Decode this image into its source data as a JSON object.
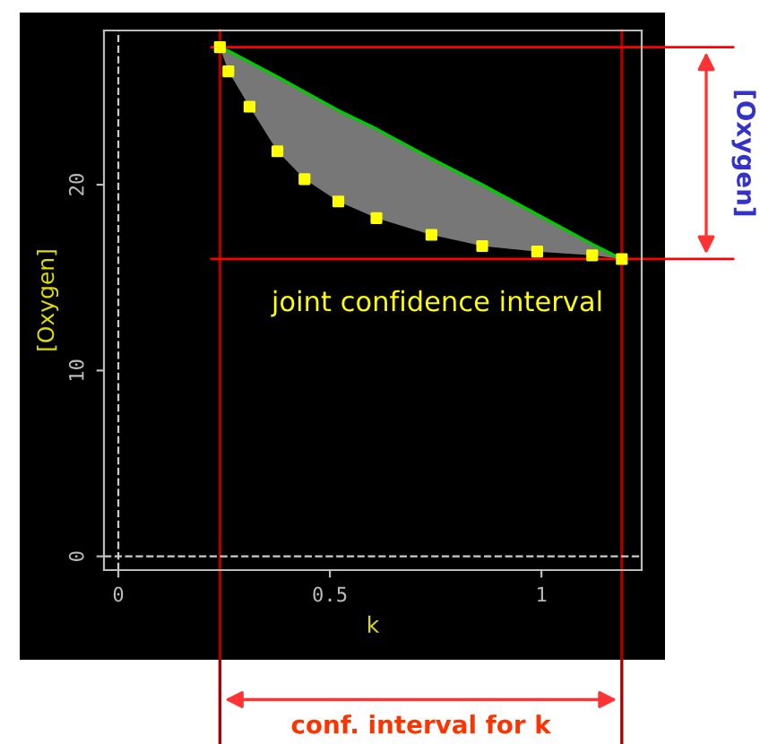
{
  "chart_data": {
    "type": "line",
    "xlabel": "k",
    "ylabel": "[Oxygen]",
    "xlim": [
      -0.034,
      1.237
    ],
    "ylim": [
      -0.74,
      28.3
    ],
    "xticks": [
      0,
      0.5,
      1
    ],
    "yticks": [
      0,
      10,
      20
    ],
    "grid": false,
    "legend": false,
    "series": [
      {
        "color": "#00cc00",
        "x": [
          0.24,
          0.26,
          0.31,
          0.376,
          0.44,
          0.52,
          0.61,
          0.74,
          0.86,
          0.99,
          1.12,
          1.19
        ],
        "values": [
          27.4,
          27.2,
          26.6,
          25.8,
          25.0,
          24.0,
          23.0,
          21.4,
          20.0,
          18.4,
          16.8,
          16.0
        ],
        "lower": [
          27.4,
          26.1,
          24.2,
          21.8,
          20.3,
          19.1,
          18.2,
          17.3,
          16.7,
          16.4,
          16.2,
          16.0
        ],
        "upper": [
          27.4,
          27.2,
          26.6,
          25.8,
          25.0,
          24.0,
          23.0,
          21.4,
          20.0,
          18.4,
          16.8,
          16.0
        ]
      },
      {
        "type": "scatter",
        "color": "#ffff00",
        "marker": "square",
        "x": [
          0.24,
          0.26,
          0.31,
          0.376,
          0.44,
          0.52,
          0.61,
          0.74,
          0.86,
          0.99,
          1.12,
          1.19
        ],
        "values": [
          27.4,
          26.1,
          24.2,
          21.8,
          20.3,
          19.1,
          18.2,
          17.3,
          16.7,
          16.4,
          16.2,
          16.0
        ]
      }
    ],
    "ref_lines": [
      {
        "axis": "x",
        "value": 0,
        "color": "#cccccc",
        "line_style": "dashed"
      },
      {
        "axis": "y",
        "value": 0,
        "color": "#cccccc",
        "line_style": "dashed"
      },
      {
        "axis": "x",
        "value": 0.24,
        "color": "#aa0000",
        "line_style": "solid"
      },
      {
        "axis": "x",
        "value": 1.19,
        "color": "#aa0000",
        "line_style": "solid"
      },
      {
        "axis": "y",
        "value": 27.4,
        "color": "#ff0000",
        "line_style": "solid"
      },
      {
        "axis": "y",
        "value": 16.0,
        "color": "#ff0000",
        "line_style": "solid"
      }
    ],
    "annotations": [
      "joint confidence interval",
      "[Oxygen]",
      "conf. interval for k"
    ]
  }
}
